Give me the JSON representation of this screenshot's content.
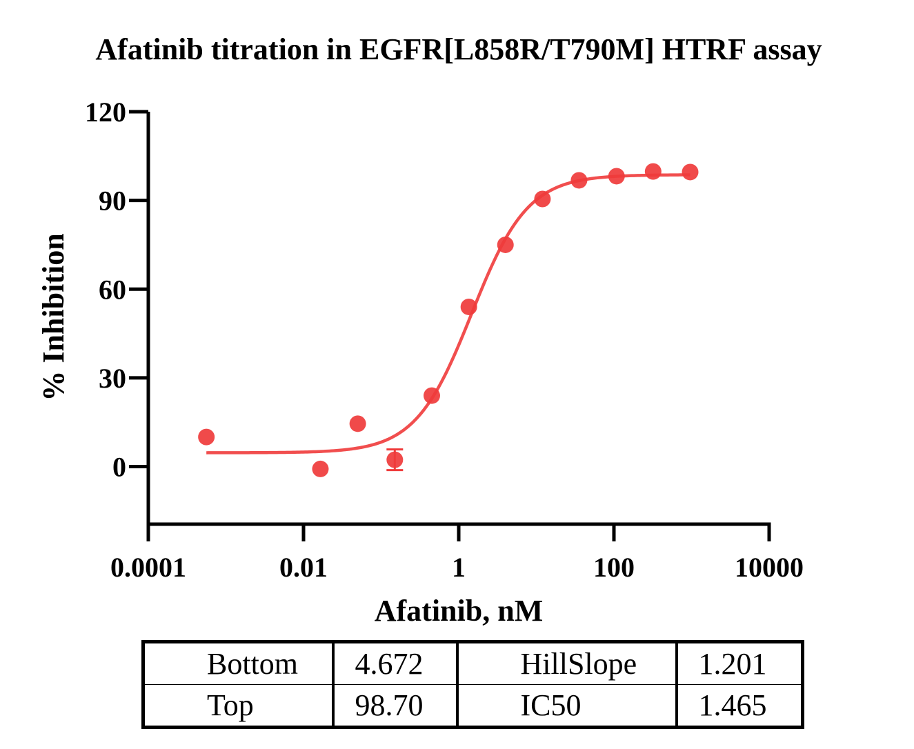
{
  "chart_data": {
    "type": "scatter",
    "title": "Afatinib titration in EGFR[L858R/T790M] HTRF assay",
    "xlabel": "Afatinib, nM",
    "ylabel": "% Inhibition",
    "x_scale": "log",
    "xlim": [
      0.0001,
      10000
    ],
    "ylim": [
      -13,
      120
    ],
    "x_ticks": [
      0.0001,
      0.01,
      1,
      100,
      10000
    ],
    "x_tick_labels": [
      "0.0001",
      "0.01",
      "1",
      "100",
      "10000"
    ],
    "y_ticks": [
      0,
      30,
      60,
      90,
      120
    ],
    "y_tick_labels": [
      "0",
      "30",
      "60",
      "90",
      "120"
    ],
    "grid": false,
    "series_color": "#ef3b3b",
    "points": [
      {
        "x": 0.00056,
        "y": 10.0
      },
      {
        "x": 0.0165,
        "y": -0.8
      },
      {
        "x": 0.05,
        "y": 14.5
      },
      {
        "x": 0.15,
        "y": 2.3,
        "err": 3.5
      },
      {
        "x": 0.45,
        "y": 24.0
      },
      {
        "x": 1.35,
        "y": 54.0
      },
      {
        "x": 4.0,
        "y": 75.0
      },
      {
        "x": 12.0,
        "y": 90.5
      },
      {
        "x": 35.5,
        "y": 96.8
      },
      {
        "x": 108.0,
        "y": 98.2
      },
      {
        "x": 320.0,
        "y": 99.8
      },
      {
        "x": 960.0,
        "y": 99.6
      }
    ],
    "fit": {
      "model": "4PL",
      "bottom": 4.672,
      "top": 98.7,
      "hillslope": 1.201,
      "ic50": 1.465,
      "x_range": [
        0.00056,
        960.0
      ]
    }
  },
  "table": {
    "rows": [
      {
        "name1": "Bottom",
        "value1": "4.672",
        "name2": "HillSlope",
        "value2": "1.201"
      },
      {
        "name1": "Top",
        "value1": "98.70",
        "name2": "IC50",
        "value2": "1.465"
      }
    ]
  }
}
